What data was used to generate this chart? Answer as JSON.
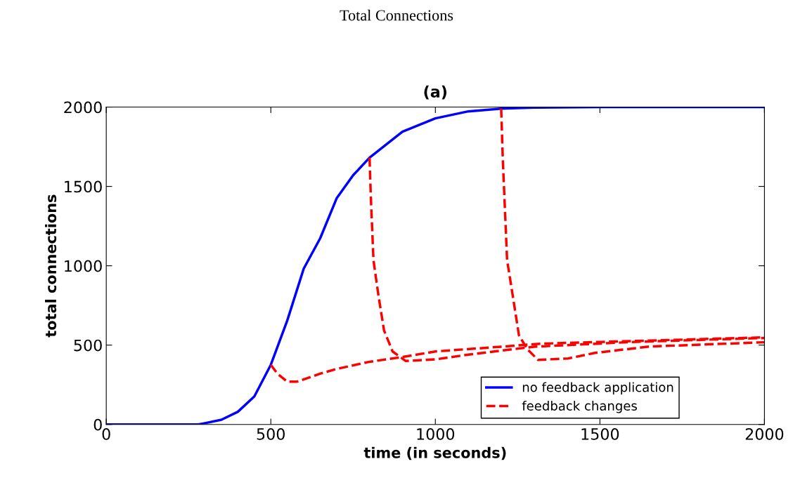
{
  "chart_data": {
    "type": "line",
    "title": "Total Connections",
    "subtitle": "(a)",
    "xlabel": "time (in seconds)",
    "ylabel": "total connections",
    "xlim": [
      0,
      2000
    ],
    "xticks": [
      0,
      500,
      1000,
      1500,
      2000
    ],
    "ylim": [
      0,
      2000
    ],
    "yticks": [
      0,
      500,
      1000,
      1500,
      2000
    ],
    "grid": false,
    "legend": "bottom right",
    "series": [
      {
        "name": "no feedback application",
        "color": "#0000ff",
        "line_style": "solid",
        "x": [
          0,
          280,
          300,
          350,
          400,
          450,
          500,
          550,
          600,
          650,
          700,
          750,
          800,
          900,
          1000,
          1100,
          1200,
          1300,
          1500,
          2000
        ],
        "values": [
          0,
          0,
          8,
          30,
          80,
          177,
          376,
          655,
          982,
          1173,
          1425,
          1570,
          1681,
          1845,
          1929,
          1973,
          1990,
          1997,
          2000,
          2000
        ]
      },
      {
        "name": "feedback changes",
        "color": "#ff0000",
        "line_style": "dashed",
        "x": [
          500,
          520,
          550,
          580,
          650,
          700,
          800,
          900,
          1000,
          1200,
          1320,
          1500,
          2000
        ],
        "values": [
          376,
          320,
          270,
          270,
          320,
          350,
          395,
          425,
          460,
          490,
          509,
          520,
          549
        ]
      },
      {
        "color": "#ff0000",
        "line_style": "dashed",
        "x": [
          800,
          804,
          812,
          827,
          844,
          870,
          910,
          950,
          1000,
          1100,
          1300,
          1600,
          2000
        ],
        "values": [
          1681,
          1430,
          1035,
          814,
          593,
          460,
          400,
          405,
          410,
          440,
          490,
          520,
          545
        ]
      },
      {
        "color": "#ff0000",
        "line_style": "dashed",
        "x": [
          1200,
          1205,
          1218,
          1231,
          1254,
          1280,
          1312,
          1404,
          1485,
          1650,
          2000
        ],
        "values": [
          1990,
          1668,
          1035,
          867,
          562,
          473,
          407,
          416,
          451,
          491,
          518
        ]
      }
    ]
  }
}
